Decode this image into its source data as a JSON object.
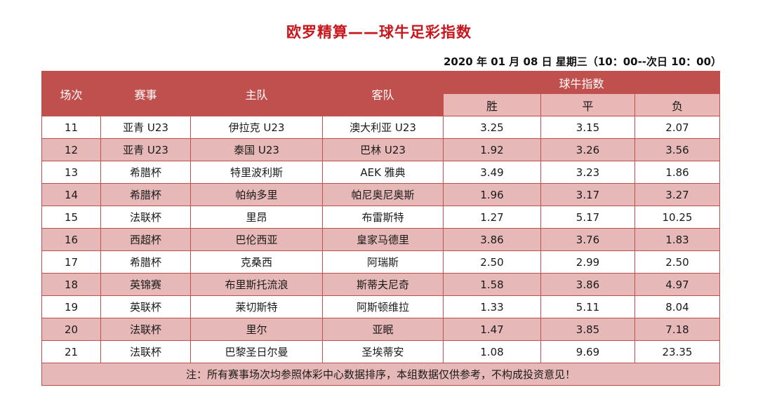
{
  "title": "欧罗精算——球牛足彩指数",
  "date": "2020 年 01 月 08 日  星期三（10：00--次日 10：00）",
  "header": {
    "col_no": "场次",
    "col_event": "赛事",
    "col_home": "主队",
    "col_away": "客队",
    "index_group": "球牛指数",
    "win": "胜",
    "draw": "平",
    "lose": "负"
  },
  "rows": [
    {
      "no": "11",
      "event": "亚青 U23",
      "home": "伊拉克 U23",
      "away": "澳大利亚 U23",
      "win": "3.25",
      "draw": "3.15",
      "lose": "2.07"
    },
    {
      "no": "12",
      "event": "亚青 U23",
      "home": "泰国 U23",
      "away": "巴林 U23",
      "win": "1.92",
      "draw": "3.26",
      "lose": "3.56"
    },
    {
      "no": "13",
      "event": "希腊杯",
      "home": "特里波利斯",
      "away": "AEK 雅典",
      "win": "3.49",
      "draw": "3.23",
      "lose": "1.86"
    },
    {
      "no": "14",
      "event": "希腊杯",
      "home": "帕纳多里",
      "away": "帕尼奥尼奥斯",
      "win": "1.96",
      "draw": "3.17",
      "lose": "3.27"
    },
    {
      "no": "15",
      "event": "法联杯",
      "home": "里昂",
      "away": "布雷斯特",
      "win": "1.27",
      "draw": "5.17",
      "lose": "10.25"
    },
    {
      "no": "16",
      "event": "西超杯",
      "home": "巴伦西亚",
      "away": "皇家马德里",
      "win": "3.86",
      "draw": "3.76",
      "lose": "1.83"
    },
    {
      "no": "17",
      "event": "希腊杯",
      "home": "克桑西",
      "away": "阿瑞斯",
      "win": "2.50",
      "draw": "2.99",
      "lose": "2.50"
    },
    {
      "no": "18",
      "event": "英锦赛",
      "home": "布里斯托流浪",
      "away": "斯蒂夫尼奇",
      "win": "1.58",
      "draw": "3.86",
      "lose": "4.97"
    },
    {
      "no": "19",
      "event": "英联杯",
      "home": "莱切斯特",
      "away": "阿斯顿维拉",
      "win": "1.33",
      "draw": "5.11",
      "lose": "8.04"
    },
    {
      "no": "20",
      "event": "法联杯",
      "home": "里尔",
      "away": "亚眠",
      "win": "1.47",
      "draw": "3.85",
      "lose": "7.18"
    },
    {
      "no": "21",
      "event": "法联杯",
      "home": "巴黎圣日尔曼",
      "away": "圣埃蒂安",
      "win": "1.08",
      "draw": "9.69",
      "lose": "23.35"
    }
  ],
  "note": "注：所有赛事场次均参照体彩中心数据排序，本组数据仅供参考，不构成投资意见！",
  "colors": {
    "header_bg": "#c0504d",
    "alt_row_bg": "#e6b8b7",
    "title": "#c8161d"
  }
}
